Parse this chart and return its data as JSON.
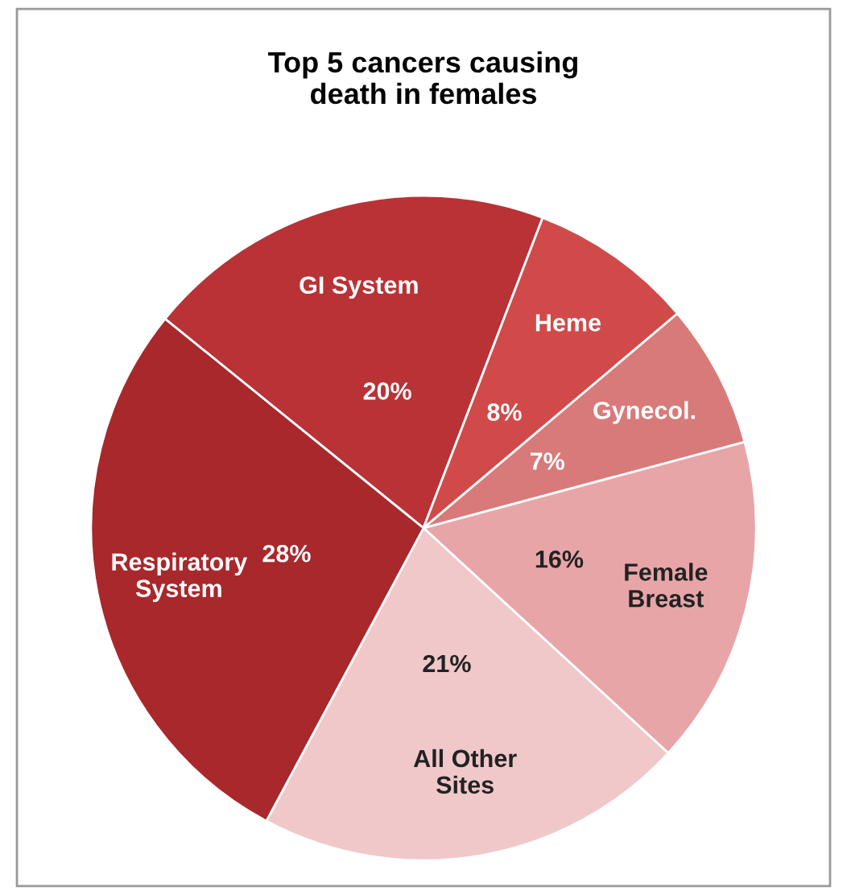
{
  "chart_data": {
    "type": "pie",
    "title": "Top 5 cancers causing\ndeath in females",
    "categories": [
      "GI System",
      "Heme",
      "Gynecol.",
      "Female\nBreast",
      "All Other\nSites",
      "Respiratory\nSystem"
    ],
    "values": [
      20,
      8,
      7,
      16,
      21,
      28
    ],
    "value_labels": [
      "20%",
      "8%",
      "7%",
      "16%",
      "21%",
      "28%"
    ],
    "colors": [
      "#b83236",
      "#d14a4a",
      "#d97a7a",
      "#e8a5a8",
      "#f0c8ca",
      "#a8282c"
    ],
    "legend": false
  }
}
